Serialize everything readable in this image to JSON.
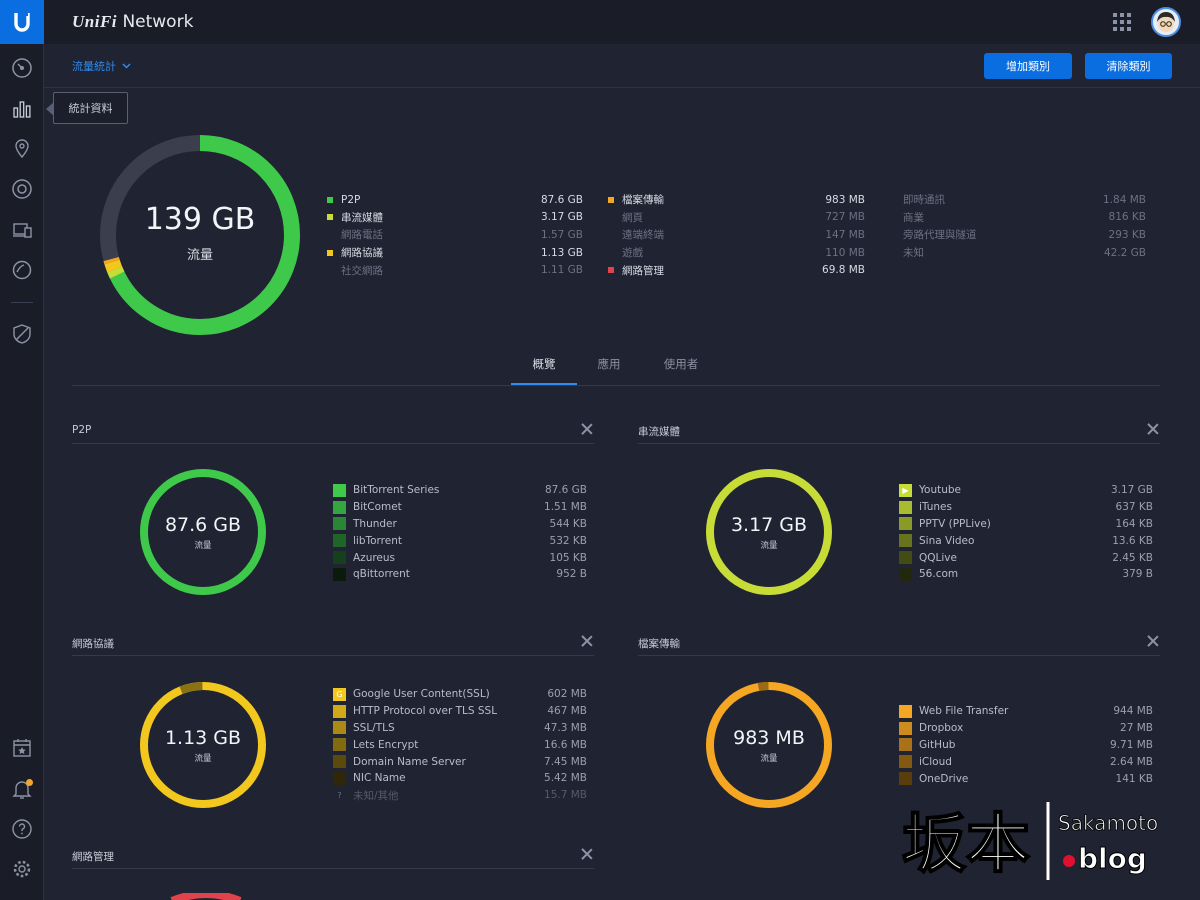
{
  "header": {
    "brand_italic": "UniFi",
    "brand_rest": "Network"
  },
  "sidebar": {
    "tooltip": "統計資料"
  },
  "subbar": {
    "view": "流量統計",
    "add_label": "增加類別",
    "clear_label": "清除類別"
  },
  "summary": {
    "total": "139 GB",
    "label": "流量",
    "columns": [
      [
        {
          "name": "P2P",
          "value": "87.6 GB",
          "color": "#3fc94a",
          "bright": true
        },
        {
          "name": "串流媒體",
          "value": "3.17 GB",
          "color": "#c8dc38",
          "bright": true
        },
        {
          "name": "網路電話",
          "value": "1.57 GB",
          "color": "",
          "bright": false
        },
        {
          "name": "網路協議",
          "value": "1.13 GB",
          "color": "#f2c81e",
          "bright": true
        },
        {
          "name": "社交網路",
          "value": "1.11 GB",
          "color": "",
          "bright": false
        }
      ],
      [
        {
          "name": "檔案傳輸",
          "value": "983 MB",
          "color": "#f5a623",
          "bright": true
        },
        {
          "name": "網頁",
          "value": "727 MB",
          "color": "",
          "bright": false
        },
        {
          "name": "遠端終端",
          "value": "147 MB",
          "color": "",
          "bright": false
        },
        {
          "name": "遊戲",
          "value": "110 MB",
          "color": "",
          "bright": false
        },
        {
          "name": "網路管理",
          "value": "69.8 MB",
          "color": "#e0434b",
          "bright": true
        }
      ],
      [
        {
          "name": "即時通訊",
          "value": "1.84 MB",
          "color": "",
          "bright": false
        },
        {
          "name": "商業",
          "value": "816 KB",
          "color": "",
          "bright": false
        },
        {
          "name": "旁路代理與隧道",
          "value": "293 KB",
          "color": "",
          "bright": false
        },
        {
          "name": "未知",
          "value": "42.2 GB",
          "color": "",
          "bright": false
        }
      ]
    ]
  },
  "tabs": [
    "概覽",
    "應用",
    "使用者"
  ],
  "panels": [
    {
      "title": "P2P",
      "total": "87.6 GB",
      "label": "流量",
      "ring": "#3fc94a",
      "items": [
        {
          "name": "BitTorrent Series",
          "value": "87.6 GB",
          "color": "#3fc94a",
          "icon": ""
        },
        {
          "name": "BitComet",
          "value": "1.51 MB",
          "color": "#33a63d",
          "icon": ""
        },
        {
          "name": "Thunder",
          "value": "544 KB",
          "color": "#2a8634",
          "icon": ""
        },
        {
          "name": "libTorrent",
          "value": "532 KB",
          "color": "#1f6528",
          "icon": ""
        },
        {
          "name": "Azureus",
          "value": "105 KB",
          "color": "#15401b",
          "icon": ""
        },
        {
          "name": "qBittorrent",
          "value": "952 B",
          "color": "#0b1a0c",
          "icon": ""
        }
      ]
    },
    {
      "title": "串流媒體",
      "total": "3.17 GB",
      "label": "流量",
      "ring": "#c8dc38",
      "items": [
        {
          "name": "Youtube",
          "value": "3.17 GB",
          "color": "#c8dc38",
          "icon": "▶"
        },
        {
          "name": "iTunes",
          "value": "637 KB",
          "color": "#a9bb2e",
          "icon": ""
        },
        {
          "name": "PPTV (PPLive)",
          "value": "164 KB",
          "color": "#899a26",
          "icon": ""
        },
        {
          "name": "Sina Video",
          "value": "13.6 KB",
          "color": "#67741d",
          "icon": ""
        },
        {
          "name": "QQLive",
          "value": "2.45 KB",
          "color": "#434c15",
          "icon": ""
        },
        {
          "name": "56.com",
          "value": "379 B",
          "color": "#22270d",
          "icon": ""
        }
      ]
    },
    {
      "title": "網路協議",
      "total": "1.13 GB",
      "label": "流量",
      "ring": "#f2c81e",
      "items": [
        {
          "name": "Google User Content(SSL)",
          "value": "602 MB",
          "color": "#f2c81e",
          "icon": "G"
        },
        {
          "name": "HTTP Protocol over TLS SSL",
          "value": "467 MB",
          "color": "#cfa919",
          "icon": ""
        },
        {
          "name": "SSL/TLS",
          "value": "47.3 MB",
          "color": "#a88a15",
          "icon": ""
        },
        {
          "name": "Lets Encrypt",
          "value": "16.6 MB",
          "color": "#826a11",
          "icon": ""
        },
        {
          "name": "Domain Name Server",
          "value": "7.45 MB",
          "color": "#5a4a0c",
          "icon": ""
        },
        {
          "name": "NIC Name",
          "value": "5.42 MB",
          "color": "#2f2708",
          "icon": ""
        },
        {
          "name": "未知/其他",
          "value": "15.7 MB",
          "color": "",
          "icon": "?",
          "dim": true
        }
      ]
    },
    {
      "title": "檔案傳輸",
      "total": "983 MB",
      "label": "流量",
      "ring": "#f5a623",
      "items": [
        {
          "name": "Web File Transfer",
          "value": "944 MB",
          "color": "#f5a623",
          "icon": ""
        },
        {
          "name": "Dropbox",
          "value": "27 MB",
          "color": "#cf8c1e",
          "icon": ""
        },
        {
          "name": "GitHub",
          "value": "9.71 MB",
          "color": "#a97218",
          "icon": ""
        },
        {
          "name": "iCloud",
          "value": "2.64 MB",
          "color": "#835912",
          "icon": ""
        },
        {
          "name": "OneDrive",
          "value": "141 KB",
          "color": "#5a3d0c",
          "icon": ""
        }
      ]
    }
  ],
  "panel5": {
    "title": "網路管理"
  },
  "watermark": {
    "big": "坂本",
    "small1": "Sakamoto",
    "small2": ".blog"
  }
}
